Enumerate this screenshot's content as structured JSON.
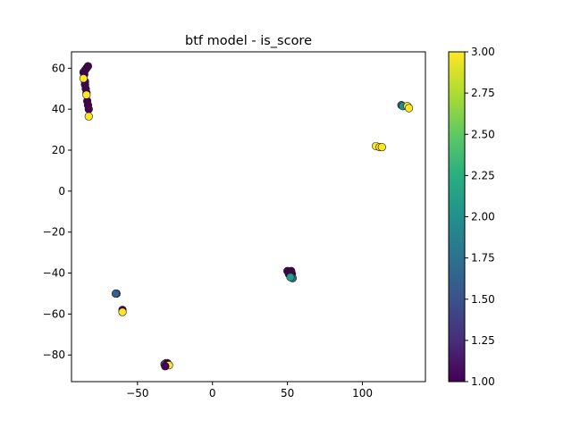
{
  "chart_data": {
    "type": "scatter",
    "title": "btf model - is_score",
    "xlabel": "",
    "ylabel": "",
    "xlim": [
      -94,
      142
    ],
    "ylim": [
      -93,
      68
    ],
    "xticks": [
      -50,
      0,
      50,
      100
    ],
    "xtick_labels": [
      "−50",
      "0",
      "50",
      "100"
    ],
    "yticks": [
      -80,
      -60,
      -40,
      -20,
      0,
      20,
      40,
      60
    ],
    "ytick_labels": [
      "−80",
      "−60",
      "−40",
      "−20",
      "0",
      "20",
      "40",
      "60"
    ],
    "grid": false,
    "colorbar": {
      "cmap": "viridis",
      "min": 1.0,
      "max": 3.0,
      "ticks": [
        1.0,
        1.25,
        1.5,
        1.75,
        2.0,
        2.25,
        2.5,
        2.75,
        3.0
      ],
      "tick_labels": [
        "1.00",
        "1.25",
        "1.50",
        "1.75",
        "2.00",
        "2.25",
        "2.50",
        "2.75",
        "3.00"
      ]
    },
    "points": [
      {
        "x": -83,
        "y": 61,
        "c": 1.0
      },
      {
        "x": -84,
        "y": 60,
        "c": 1.0
      },
      {
        "x": -85,
        "y": 59,
        "c": 1.0
      },
      {
        "x": -86,
        "y": 58,
        "c": 1.0
      },
      {
        "x": -85.5,
        "y": 57,
        "c": 1.0
      },
      {
        "x": -85,
        "y": 53.5,
        "c": 1.0
      },
      {
        "x": -85,
        "y": 52,
        "c": 1.0
      },
      {
        "x": -84.5,
        "y": 50,
        "c": 1.0
      },
      {
        "x": -84,
        "y": 48,
        "c": 1.0
      },
      {
        "x": -83.5,
        "y": 44,
        "c": 1.0
      },
      {
        "x": -83,
        "y": 42,
        "c": 1.0
      },
      {
        "x": -82.5,
        "y": 40,
        "c": 1.0
      },
      {
        "x": -86,
        "y": 55,
        "c": 3.0
      },
      {
        "x": -84,
        "y": 47,
        "c": 3.0
      },
      {
        "x": -82.5,
        "y": 36.5,
        "c": 3.0
      },
      {
        "x": 126,
        "y": 42,
        "c": 1.6
      },
      {
        "x": 127,
        "y": 41.5,
        "c": 2.0
      },
      {
        "x": 130,
        "y": 41.5,
        "c": 3.0
      },
      {
        "x": 131,
        "y": 40.5,
        "c": 3.0
      },
      {
        "x": 109,
        "y": 22,
        "c": 3.0
      },
      {
        "x": 111.5,
        "y": 21.5,
        "c": 3.0
      },
      {
        "x": 113,
        "y": 21.5,
        "c": 3.0
      },
      {
        "x": 50,
        "y": -39,
        "c": 1.0
      },
      {
        "x": 51.5,
        "y": -40,
        "c": 1.0
      },
      {
        "x": 52.5,
        "y": -39,
        "c": 1.0
      },
      {
        "x": 53,
        "y": -40.5,
        "c": 1.0
      },
      {
        "x": 51,
        "y": -40.5,
        "c": 1.0
      },
      {
        "x": 53.5,
        "y": -42.5,
        "c": 1.75
      },
      {
        "x": 52,
        "y": -42,
        "c": 2.1
      },
      {
        "x": -64,
        "y": -50,
        "c": 1.0
      },
      {
        "x": -64.5,
        "y": -50,
        "c": 1.6
      },
      {
        "x": -60,
        "y": -58,
        "c": 1.0
      },
      {
        "x": -60,
        "y": -59,
        "c": 3.0
      },
      {
        "x": -31,
        "y": -84,
        "c": 1.0
      },
      {
        "x": -32,
        "y": -84.5,
        "c": 1.4
      },
      {
        "x": -30,
        "y": -84,
        "c": 1.0
      },
      {
        "x": -29,
        "y": -85,
        "c": 3.0
      },
      {
        "x": -31.5,
        "y": -85.5,
        "c": 1.0
      }
    ]
  }
}
